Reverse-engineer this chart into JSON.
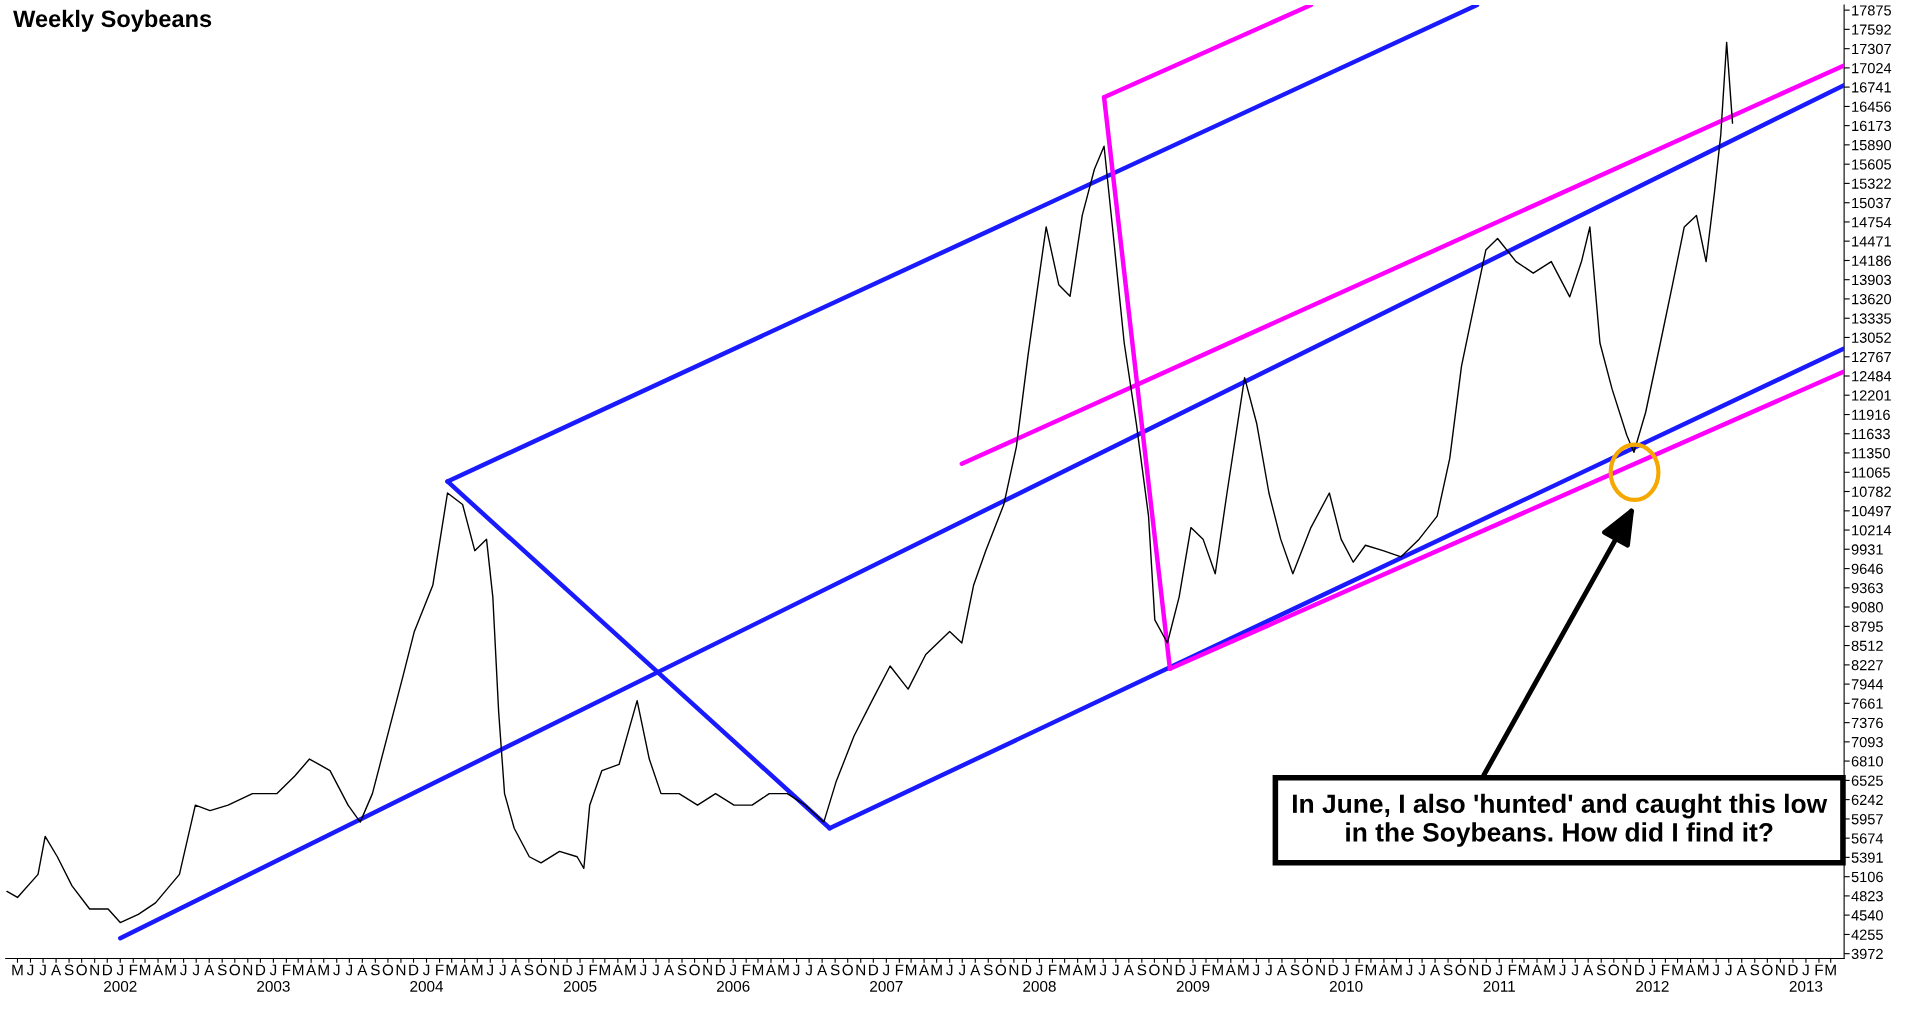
{
  "chart_data": {
    "type": "line",
    "title": "Weekly Soybeans",
    "annotations": [
      "In June, I also 'hunted' and caught this low\nin the Soybeans. How did I find it?"
    ],
    "xlim": [
      "2001-04-03",
      "2013-04-02"
    ],
    "ylim": [
      3900,
      17950
    ],
    "yticks": [
      3972,
      4255,
      4540,
      4823,
      5106,
      5391,
      5674,
      5957,
      6242,
      6525,
      6810,
      7093,
      7376,
      7661,
      7944,
      8227,
      8512,
      8795,
      9080,
      9363,
      9646,
      9931,
      10214,
      10497,
      10782,
      11065,
      11350,
      11633,
      11916,
      12201,
      12484,
      12767,
      13052,
      13335,
      13620,
      13903,
      14186,
      14471,
      14754,
      15037,
      15322,
      15605,
      15890,
      16173,
      16456,
      16741,
      17024,
      17307,
      17592,
      17875
    ],
    "xticks": [
      {
        "value": "2001-05-01",
        "label": "M"
      },
      {
        "value": "2001-06-01",
        "label": "J"
      },
      {
        "value": "2001-07-01",
        "label": "J"
      },
      {
        "value": "2001-08-01",
        "label": "A"
      },
      {
        "value": "2001-09-01",
        "label": "S"
      },
      {
        "value": "2001-10-01",
        "label": "O"
      },
      {
        "value": "2001-11-01",
        "label": "N"
      },
      {
        "value": "2001-12-01",
        "label": "D"
      },
      {
        "value": "2002-01-01",
        "label": "J\n2002"
      },
      {
        "value": "2002-02-01",
        "label": "F"
      },
      {
        "value": "2002-03-01",
        "label": "M"
      },
      {
        "value": "2002-04-01",
        "label": "A"
      },
      {
        "value": "2002-05-01",
        "label": "M"
      },
      {
        "value": "2002-06-01",
        "label": "J"
      },
      {
        "value": "2002-07-01",
        "label": "J"
      },
      {
        "value": "2002-08-01",
        "label": "A"
      },
      {
        "value": "2002-09-01",
        "label": "S"
      },
      {
        "value": "2002-10-01",
        "label": "O"
      },
      {
        "value": "2002-11-01",
        "label": "N"
      },
      {
        "value": "2002-12-01",
        "label": "D"
      },
      {
        "value": "2003-01-01",
        "label": "J\n2003"
      },
      {
        "value": "2003-02-01",
        "label": "F"
      },
      {
        "value": "2003-03-01",
        "label": "M"
      },
      {
        "value": "2003-04-01",
        "label": "A"
      },
      {
        "value": "2003-05-01",
        "label": "M"
      },
      {
        "value": "2003-06-01",
        "label": "J"
      },
      {
        "value": "2003-07-01",
        "label": "J"
      },
      {
        "value": "2003-08-01",
        "label": "A"
      },
      {
        "value": "2003-09-01",
        "label": "S"
      },
      {
        "value": "2003-10-01",
        "label": "O"
      },
      {
        "value": "2003-11-01",
        "label": "N"
      },
      {
        "value": "2003-12-01",
        "label": "D"
      },
      {
        "value": "2004-01-01",
        "label": "J\n2004"
      },
      {
        "value": "2004-02-01",
        "label": "F"
      },
      {
        "value": "2004-03-01",
        "label": "M"
      },
      {
        "value": "2004-04-01",
        "label": "A"
      },
      {
        "value": "2004-05-01",
        "label": "M"
      },
      {
        "value": "2004-06-01",
        "label": "J"
      },
      {
        "value": "2004-07-01",
        "label": "J"
      },
      {
        "value": "2004-08-01",
        "label": "A"
      },
      {
        "value": "2004-09-01",
        "label": "S"
      },
      {
        "value": "2004-10-01",
        "label": "O"
      },
      {
        "value": "2004-11-01",
        "label": "N"
      },
      {
        "value": "2004-12-01",
        "label": "D"
      },
      {
        "value": "2005-01-01",
        "label": "J\n2005"
      },
      {
        "value": "2005-02-01",
        "label": "F"
      },
      {
        "value": "2005-03-01",
        "label": "M"
      },
      {
        "value": "2005-04-01",
        "label": "A"
      },
      {
        "value": "2005-05-01",
        "label": "M"
      },
      {
        "value": "2005-06-01",
        "label": "J"
      },
      {
        "value": "2005-07-01",
        "label": "J"
      },
      {
        "value": "2005-08-01",
        "label": "A"
      },
      {
        "value": "2005-09-01",
        "label": "S"
      },
      {
        "value": "2005-10-01",
        "label": "O"
      },
      {
        "value": "2005-11-01",
        "label": "N"
      },
      {
        "value": "2005-12-01",
        "label": "D"
      },
      {
        "value": "2006-01-01",
        "label": "J\n2006"
      },
      {
        "value": "2006-02-01",
        "label": "F"
      },
      {
        "value": "2006-03-01",
        "label": "M"
      },
      {
        "value": "2006-04-01",
        "label": "A"
      },
      {
        "value": "2006-05-01",
        "label": "M"
      },
      {
        "value": "2006-06-01",
        "label": "J"
      },
      {
        "value": "2006-07-01",
        "label": "J"
      },
      {
        "value": "2006-08-01",
        "label": "A"
      },
      {
        "value": "2006-09-01",
        "label": "S"
      },
      {
        "value": "2006-10-01",
        "label": "O"
      },
      {
        "value": "2006-11-01",
        "label": "N"
      },
      {
        "value": "2006-12-01",
        "label": "D"
      },
      {
        "value": "2007-01-01",
        "label": "J\n2007"
      },
      {
        "value": "2007-02-01",
        "label": "F"
      },
      {
        "value": "2007-03-01",
        "label": "M"
      },
      {
        "value": "2007-04-01",
        "label": "A"
      },
      {
        "value": "2007-05-01",
        "label": "M"
      },
      {
        "value": "2007-06-01",
        "label": "J"
      },
      {
        "value": "2007-07-01",
        "label": "J"
      },
      {
        "value": "2007-08-01",
        "label": "A"
      },
      {
        "value": "2007-09-01",
        "label": "S"
      },
      {
        "value": "2007-10-01",
        "label": "O"
      },
      {
        "value": "2007-11-01",
        "label": "N"
      },
      {
        "value": "2007-12-01",
        "label": "D"
      },
      {
        "value": "2008-01-01",
        "label": "J\n2008"
      },
      {
        "value": "2008-02-01",
        "label": "F"
      },
      {
        "value": "2008-03-01",
        "label": "M"
      },
      {
        "value": "2008-04-01",
        "label": "A"
      },
      {
        "value": "2008-05-01",
        "label": "M"
      },
      {
        "value": "2008-06-01",
        "label": "J"
      },
      {
        "value": "2008-07-01",
        "label": "J"
      },
      {
        "value": "2008-08-01",
        "label": "A"
      },
      {
        "value": "2008-09-01",
        "label": "S"
      },
      {
        "value": "2008-10-01",
        "label": "O"
      },
      {
        "value": "2008-11-01",
        "label": "N"
      },
      {
        "value": "2008-12-01",
        "label": "D"
      },
      {
        "value": "2009-01-01",
        "label": "J\n2009"
      },
      {
        "value": "2009-02-01",
        "label": "F"
      },
      {
        "value": "2009-03-01",
        "label": "M"
      },
      {
        "value": "2009-04-01",
        "label": "A"
      },
      {
        "value": "2009-05-01",
        "label": "M"
      },
      {
        "value": "2009-06-01",
        "label": "J"
      },
      {
        "value": "2009-07-01",
        "label": "J"
      },
      {
        "value": "2009-08-01",
        "label": "A"
      },
      {
        "value": "2009-09-01",
        "label": "S"
      },
      {
        "value": "2009-10-01",
        "label": "O"
      },
      {
        "value": "2009-11-01",
        "label": "N"
      },
      {
        "value": "2009-12-01",
        "label": "D"
      },
      {
        "value": "2010-01-01",
        "label": "J\n2010"
      },
      {
        "value": "2010-02-01",
        "label": "F"
      },
      {
        "value": "2010-03-01",
        "label": "M"
      },
      {
        "value": "2010-04-01",
        "label": "A"
      },
      {
        "value": "2010-05-01",
        "label": "M"
      },
      {
        "value": "2010-06-01",
        "label": "J"
      },
      {
        "value": "2010-07-01",
        "label": "J"
      },
      {
        "value": "2010-08-01",
        "label": "A"
      },
      {
        "value": "2010-09-01",
        "label": "S"
      },
      {
        "value": "2010-10-01",
        "label": "O"
      },
      {
        "value": "2010-11-01",
        "label": "N"
      },
      {
        "value": "2010-12-01",
        "label": "D"
      },
      {
        "value": "2011-01-01",
        "label": "J\n2011"
      },
      {
        "value": "2011-02-01",
        "label": "F"
      },
      {
        "value": "2011-03-01",
        "label": "M"
      },
      {
        "value": "2011-04-01",
        "label": "A"
      },
      {
        "value": "2011-05-01",
        "label": "M"
      },
      {
        "value": "2011-06-01",
        "label": "J"
      },
      {
        "value": "2011-07-01",
        "label": "J"
      },
      {
        "value": "2011-08-01",
        "label": "A"
      },
      {
        "value": "2011-09-01",
        "label": "S"
      },
      {
        "value": "2011-10-01",
        "label": "O"
      },
      {
        "value": "2011-11-01",
        "label": "N"
      },
      {
        "value": "2011-12-01",
        "label": "D"
      },
      {
        "value": "2012-01-01",
        "label": "J\n2012"
      },
      {
        "value": "2012-02-01",
        "label": "F"
      },
      {
        "value": "2012-03-01",
        "label": "M"
      },
      {
        "value": "2012-04-01",
        "label": "A"
      },
      {
        "value": "2012-05-01",
        "label": "M"
      },
      {
        "value": "2012-06-01",
        "label": "J"
      },
      {
        "value": "2012-07-01",
        "label": "J"
      },
      {
        "value": "2012-08-01",
        "label": "A"
      },
      {
        "value": "2012-09-01",
        "label": "S"
      },
      {
        "value": "2012-10-01",
        "label": "O"
      },
      {
        "value": "2012-11-01",
        "label": "N"
      },
      {
        "value": "2012-12-01",
        "label": "D"
      },
      {
        "value": "2013-01-01",
        "label": "J\n2013"
      },
      {
        "value": "2013-02-01",
        "label": "F"
      },
      {
        "value": "2013-03-01",
        "label": "M"
      }
    ],
    "grid": false,
    "legend": false,
    "series": [
      {
        "color": "#000000",
        "x": [
          "2001-04-06",
          "2001-05-01",
          "2001-06-19",
          "2001-07-06",
          "2001-08-04",
          "2001-09-08",
          "2001-10-20",
          "2001-12-03",
          "2002-01-01",
          "2002-02-13",
          "2002-03-26",
          "2002-05-22",
          "2002-06-29",
          "2002-08-03",
          "2002-09-15",
          "2002-11-12",
          "2003-01-09",
          "2003-02-21",
          "2003-03-28",
          "2003-05-16",
          "2003-06-28",
          "2003-07-27",
          "2003-08-25",
          "2003-10-07",
          "2003-11-05",
          "2003-12-03",
          "2004-01-16",
          "2004-02-20",
          "2004-03-27",
          "2004-04-25",
          "2004-05-23",
          "2004-06-07",
          "2004-06-21",
          "2004-07-05",
          "2004-07-28",
          "2004-09-02",
          "2004-09-30",
          "2004-11-13",
          "2004-12-25",
          "2005-01-10",
          "2005-01-24",
          "2005-02-22",
          "2005-04-04",
          "2005-05-17",
          "2005-06-15",
          "2005-07-13",
          "2005-08-25",
          "2005-10-08",
          "2005-11-20",
          "2006-01-03",
          "2006-02-15",
          "2006-03-28",
          "2006-05-10",
          "2006-06-22",
          "2006-08-05",
          "2006-09-03",
          "2006-10-16",
          "2006-11-28",
          "2007-01-10",
          "2007-02-22",
          "2007-04-05",
          "2007-06-01",
          "2007-06-30",
          "2007-07-28",
          "2007-08-26",
          "2007-10-08",
          "2007-11-07",
          "2007-12-05",
          "2008-01-17",
          "2008-02-16",
          "2008-03-14",
          "2008-04-12",
          "2008-05-11",
          "2008-06-03",
          "2008-06-23",
          "2008-07-21",
          "2008-08-19",
          "2008-09-17",
          "2008-10-02",
          "2008-11-01",
          "2008-11-29",
          "2008-12-27",
          "2009-01-25",
          "2009-02-23",
          "2009-03-23",
          "2009-05-04",
          "2009-06-02",
          "2009-07-01",
          "2009-07-29",
          "2009-08-27",
          "2009-10-09",
          "2009-11-22",
          "2009-12-20",
          "2010-01-18",
          "2010-02-16",
          "2010-03-30",
          "2010-05-12",
          "2010-06-24",
          "2010-08-06",
          "2010-09-05",
          "2010-10-03",
          "2010-11-01",
          "2010-11-30",
          "2010-12-28",
          "2011-02-10",
          "2011-03-23",
          "2011-05-05",
          "2011-06-18",
          "2011-07-16",
          "2011-08-05",
          "2011-08-29",
          "2011-09-27",
          "2011-11-01",
          "2011-11-18",
          "2011-12-16",
          "2012-01-20",
          "2012-02-18",
          "2012-03-17",
          "2012-04-15",
          "2012-05-08",
          "2012-05-28",
          "2012-06-12",
          "2012-06-26",
          "2012-07-10"
        ],
        "values": [
          4890,
          4800,
          5140,
          5700,
          5400,
          4970,
          4630,
          4630,
          4430,
          4550,
          4720,
          5140,
          6160,
          6080,
          6160,
          6330,
          6330,
          6590,
          6840,
          6670,
          6160,
          5910,
          6330,
          7350,
          8040,
          8720,
          9400,
          10760,
          10590,
          9910,
          10080,
          9230,
          7530,
          6330,
          5820,
          5400,
          5310,
          5480,
          5400,
          5230,
          6160,
          6670,
          6760,
          7700,
          6840,
          6330,
          6330,
          6160,
          6330,
          6160,
          6160,
          6330,
          6330,
          6160,
          5910,
          6500,
          7180,
          7700,
          8210,
          7870,
          8380,
          8720,
          8550,
          9400,
          9910,
          10590,
          11440,
          12800,
          14680,
          13830,
          13660,
          14850,
          15530,
          15870,
          14680,
          12970,
          11780,
          10420,
          8890,
          8550,
          9230,
          10250,
          10080,
          9570,
          10760,
          12460,
          11780,
          10760,
          10080,
          9570,
          10250,
          10760,
          10080,
          9740,
          9990,
          9910,
          9820,
          10080,
          10420,
          11270,
          12630,
          13490,
          14340,
          14510,
          14170,
          14000,
          14170,
          13650,
          14170,
          14680,
          12970,
          12290,
          11610,
          11360,
          11950,
          12970,
          13830,
          14680,
          14850,
          14170,
          15190,
          16040,
          17400,
          16210
        ]
      },
      {
        "color": "#1a1aff",
        "x": [
          "2002-01-01",
          "2013-04-02"
        ],
        "values": [
          4200,
          16770
        ]
      },
      {
        "color": "#1a1aff",
        "x": [
          "2004-02-20",
          "2010-11-09"
        ],
        "values": [
          10930,
          17950
        ]
      },
      {
        "color": "#1a1aff",
        "x": [
          "2004-02-20",
          "2006-08-19"
        ],
        "values": [
          10930,
          5820
        ]
      },
      {
        "color": "#1a1aff",
        "x": [
          "2006-08-19",
          "2013-04-02"
        ],
        "values": [
          5820,
          12890
        ]
      },
      {
        "color": "#ff00ff",
        "x": [
          "2008-06-03",
          "2008-11-07"
        ],
        "values": [
          16590,
          8170
        ]
      },
      {
        "color": "#ff00ff",
        "x": [
          "2008-06-03",
          "2009-10-09"
        ],
        "values": [
          16590,
          17950
        ]
      },
      {
        "color": "#ff00ff",
        "x": [
          "2007-06-30",
          "2013-04-02"
        ],
        "values": [
          11190,
          17060
        ]
      },
      {
        "color": "#ff00ff",
        "x": [
          "2008-11-07",
          "2013-04-02"
        ],
        "values": [
          8170,
          12550
        ]
      }
    ]
  }
}
